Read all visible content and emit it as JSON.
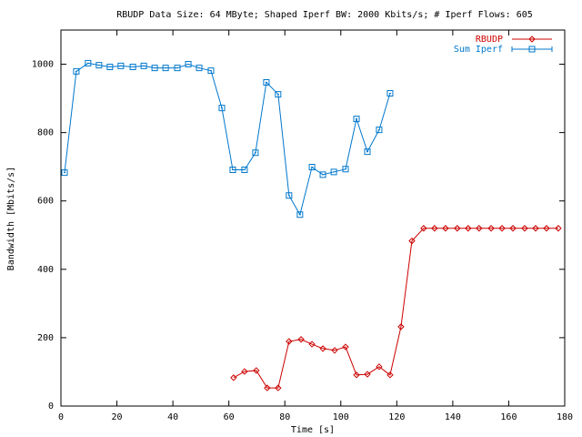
{
  "chart_data": {
    "type": "line",
    "title": "RBUDP Data Size: 64 MByte; Shaped Iperf BW: 2000 Kbits/s; # Iperf Flows: 605",
    "x_label": "Time [s]",
    "y_label": "Bandwidth [Mbits/s]",
    "xlim": [
      0,
      180
    ],
    "xticks": [
      0,
      20,
      40,
      60,
      80,
      100,
      120,
      140,
      160,
      180
    ],
    "ylim": [
      0,
      1100
    ],
    "yticks": [
      0,
      200,
      400,
      600,
      800,
      1000
    ],
    "legend": "top-right",
    "series": [
      {
        "name": "RBUDP",
        "color": "#cc0000",
        "marker": "diamond",
        "x": [
          61.7,
          65.6,
          69.8,
          73.7,
          77.6,
          81.5,
          85.8,
          89.7,
          93.6,
          97.8,
          101.7,
          105.6,
          109.5,
          113.7,
          117.6,
          121.5,
          125.4,
          129.6,
          133.5,
          137.4,
          141.6,
          145.5,
          149.4,
          153.7,
          157.6,
          161.5,
          165.7,
          169.6,
          173.5,
          177.7
        ],
        "values": [
          83,
          101,
          104,
          53,
          53,
          189,
          195,
          181,
          168,
          163,
          173,
          91,
          93,
          115,
          91,
          232,
          483,
          520,
          520,
          520,
          520,
          520,
          520,
          520,
          520,
          520,
          520,
          520,
          520,
          520
        ]
      },
      {
        "name": "Sum Iperf",
        "color": "#0077cc",
        "marker": "square",
        "x": [
          1.3,
          5.5,
          9.7,
          13.6,
          17.5,
          21.4,
          25.7,
          29.6,
          33.5,
          37.4,
          41.6,
          45.5,
          49.4,
          53.6,
          57.5,
          61.4,
          65.6,
          69.5,
          73.4,
          77.6,
          81.5,
          85.4,
          89.7,
          93.6,
          97.5,
          101.7,
          105.6,
          109.5,
          113.7,
          117.6
        ],
        "values": [
          683,
          979,
          1003,
          997,
          992,
          995,
          992,
          995,
          989,
          989,
          989,
          1000,
          989,
          981,
          872,
          691,
          691,
          741,
          947,
          912,
          616,
          560,
          699,
          677,
          685,
          693,
          840,
          744,
          808,
          915
        ]
      }
    ]
  }
}
